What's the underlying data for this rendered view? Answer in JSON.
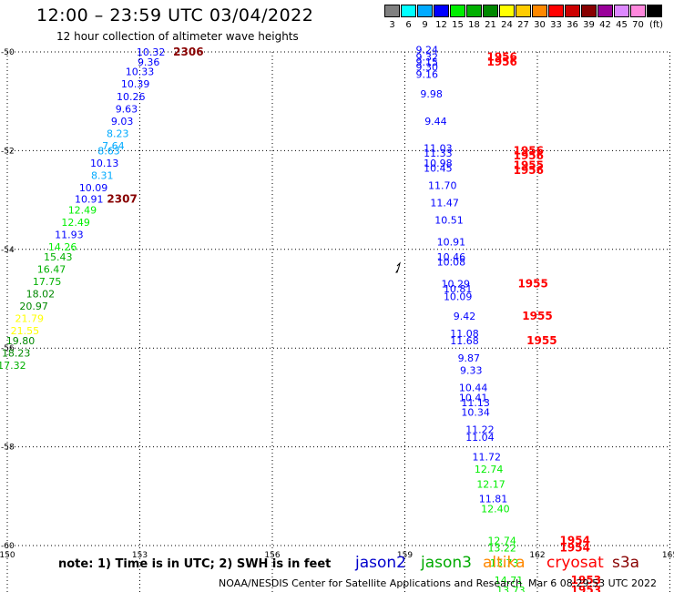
{
  "header": {
    "title": "12:00 – 23:59 UTC 03/04/2022",
    "subtitle": "12 hour collection of altimeter wave heights"
  },
  "scale": {
    "colors": [
      "#808080",
      "#00ffff",
      "#00aaff",
      "#0000ff",
      "#00ee00",
      "#00b000",
      "#008800",
      "#ffff00",
      "#ffcc00",
      "#ff8800",
      "#ff0000",
      "#cc0000",
      "#880000",
      "#990099",
      "#dd88ff",
      "#ff88dd",
      "#000000"
    ],
    "labels": [
      "3",
      "6",
      "9",
      "12",
      "15",
      "18",
      "21",
      "24",
      "27",
      "30",
      "33",
      "36",
      "39",
      "42",
      "45",
      "70",
      "(ft)"
    ]
  },
  "axes": {
    "x_ticks": [
      "150",
      "153",
      "156",
      "159",
      "162",
      "165"
    ],
    "y_ticks": [
      "-50",
      "-52",
      "-54",
      "-56",
      "-58",
      "-60"
    ]
  },
  "tracks": [
    {
      "points": [
        {
          "v": "10.32",
          "lon": 153.25,
          "lat": -50.0
        },
        {
          "v": "9.36",
          "lon": 153.2,
          "lat": -50.2
        },
        {
          "v": "10.33",
          "lon": 153.0,
          "lat": -50.4
        },
        {
          "v": "10.39",
          "lon": 152.9,
          "lat": -50.65
        },
        {
          "v": "10.26",
          "lon": 152.8,
          "lat": -50.9
        },
        {
          "v": "9.63",
          "lon": 152.7,
          "lat": -51.15
        },
        {
          "v": "9.03",
          "lon": 152.6,
          "lat": -51.4
        },
        {
          "v": "8.23",
          "lon": 152.5,
          "lat": -51.65
        },
        {
          "v": "7.64",
          "lon": 152.4,
          "lat": -51.9
        },
        {
          "v": "8.63",
          "lon": 152.3,
          "lat": -52.0
        },
        {
          "v": "10.13",
          "lon": 152.2,
          "lat": -52.25
        },
        {
          "v": "8.31",
          "lon": 152.15,
          "lat": -52.5
        },
        {
          "v": "10.09",
          "lon": 151.95,
          "lat": -52.75
        },
        {
          "v": "10.91",
          "lon": 151.85,
          "lat": -52.98
        },
        {
          "v": "12.49",
          "lon": 151.7,
          "lat": -53.2
        },
        {
          "v": "12.49",
          "lon": 151.55,
          "lat": -53.45
        },
        {
          "v": "11.93",
          "lon": 151.4,
          "lat": -53.7
        },
        {
          "v": "14.26",
          "lon": 151.25,
          "lat": -53.95
        },
        {
          "v": "15.43",
          "lon": 151.15,
          "lat": -54.15
        },
        {
          "v": "16.47",
          "lon": 151.0,
          "lat": -54.4
        },
        {
          "v": "17.75",
          "lon": 150.9,
          "lat": -54.65
        },
        {
          "v": "18.02",
          "lon": 150.75,
          "lat": -54.9
        },
        {
          "v": "20.97",
          "lon": 150.6,
          "lat": -55.15
        },
        {
          "v": "21.79",
          "lon": 150.5,
          "lat": -55.4
        },
        {
          "v": "21.55",
          "lon": 150.4,
          "lat": -55.65
        },
        {
          "v": "19.80",
          "lon": 150.3,
          "lat": -55.85
        },
        {
          "v": "18.23",
          "lon": 150.2,
          "lat": -56.1
        },
        {
          "v": "17.32",
          "lon": 150.1,
          "lat": -56.35
        }
      ]
    },
    {
      "points": [
        {
          "v": "9.24",
          "lon": 159.5,
          "lat": -49.95
        },
        {
          "v": "9.32",
          "lon": 159.5,
          "lat": -50.1
        },
        {
          "v": "9.15",
          "lon": 159.5,
          "lat": -50.2
        },
        {
          "v": "9.30",
          "lon": 159.5,
          "lat": -50.3
        },
        {
          "v": "9.16",
          "lon": 159.5,
          "lat": -50.45
        },
        {
          "v": "9.98",
          "lon": 159.6,
          "lat": -50.85
        },
        {
          "v": "9.44",
          "lon": 159.7,
          "lat": -51.4
        },
        {
          "v": "11.03",
          "lon": 159.75,
          "lat": -51.95
        },
        {
          "v": "11.33",
          "lon": 159.75,
          "lat": -52.05
        },
        {
          "v": "10.98",
          "lon": 159.75,
          "lat": -52.25
        },
        {
          "v": "10.45",
          "lon": 159.75,
          "lat": -52.35
        },
        {
          "v": "11.70",
          "lon": 159.85,
          "lat": -52.7
        },
        {
          "v": "11.47",
          "lon": 159.9,
          "lat": -53.05
        },
        {
          "v": "10.51",
          "lon": 160.0,
          "lat": -53.4
        },
        {
          "v": "10.91",
          "lon": 160.05,
          "lat": -53.85
        },
        {
          "v": "10.46",
          "lon": 160.05,
          "lat": -54.15
        },
        {
          "v": "10.08",
          "lon": 160.05,
          "lat": -54.25
        },
        {
          "v": "10.29",
          "lon": 160.15,
          "lat": -54.7
        },
        {
          "v": "10.81",
          "lon": 160.2,
          "lat": -54.8
        },
        {
          "v": "10.09",
          "lon": 160.2,
          "lat": -54.95
        },
        {
          "v": "9.42",
          "lon": 160.35,
          "lat": -55.35
        },
        {
          "v": "11.08",
          "lon": 160.35,
          "lat": -55.7
        },
        {
          "v": "11.68",
          "lon": 160.35,
          "lat": -55.85
        },
        {
          "v": "9.87",
          "lon": 160.45,
          "lat": -56.2
        },
        {
          "v": "9.33",
          "lon": 160.5,
          "lat": -56.45
        },
        {
          "v": "10.44",
          "lon": 160.55,
          "lat": -56.8
        },
        {
          "v": "10.41",
          "lon": 160.55,
          "lat": -57.0
        },
        {
          "v": "11.13",
          "lon": 160.6,
          "lat": -57.1
        },
        {
          "v": "10.34",
          "lon": 160.6,
          "lat": -57.3
        },
        {
          "v": "11.22",
          "lon": 160.7,
          "lat": -57.65
        },
        {
          "v": "11.04",
          "lon": 160.7,
          "lat": -57.8
        },
        {
          "v": "11.72",
          "lon": 160.85,
          "lat": -58.2
        },
        {
          "v": "12.74",
          "lon": 160.9,
          "lat": -58.45
        },
        {
          "v": "12.17",
          "lon": 160.95,
          "lat": -58.75
        },
        {
          "v": "11.81",
          "lon": 161.0,
          "lat": -59.05
        },
        {
          "v": "12.40",
          "lon": 161.05,
          "lat": -59.25
        },
        {
          "v": "12.74",
          "lon": 161.2,
          "lat": -59.9
        },
        {
          "v": "13.22",
          "lon": 161.2,
          "lat": -60.05
        },
        {
          "v": "13.73",
          "lon": 161.25,
          "lat": -60.35
        },
        {
          "v": "14.71",
          "lon": 161.35,
          "lat": -60.7
        },
        {
          "v": "13.73",
          "lon": 161.4,
          "lat": -60.9
        }
      ]
    }
  ],
  "times": [
    {
      "t": "2306",
      "lon": 154.1,
      "lat": -50.0,
      "color": "#880000"
    },
    {
      "t": "2307",
      "lon": 152.6,
      "lat": -52.98,
      "color": "#880000"
    },
    {
      "t": "1956",
      "lon": 161.2,
      "lat": -50.1,
      "color": "#ff0000"
    },
    {
      "t": "1956",
      "lon": 161.2,
      "lat": -50.2,
      "color": "#ff0000"
    },
    {
      "t": "1956",
      "lon": 161.8,
      "lat": -52.0,
      "color": "#ff0000"
    },
    {
      "t": "1956",
      "lon": 161.8,
      "lat": -52.1,
      "color": "#ff0000"
    },
    {
      "t": "1955",
      "lon": 161.8,
      "lat": -52.3,
      "color": "#ff0000"
    },
    {
      "t": "1956",
      "lon": 161.8,
      "lat": -52.4,
      "color": "#ff0000"
    },
    {
      "t": "1955",
      "lon": 161.9,
      "lat": -54.7,
      "color": "#ff0000"
    },
    {
      "t": "1955",
      "lon": 162.0,
      "lat": -55.35,
      "color": "#ff0000"
    },
    {
      "t": "1955",
      "lon": 162.1,
      "lat": -55.85,
      "color": "#ff0000"
    },
    {
      "t": "1954",
      "lon": 162.85,
      "lat": -59.9,
      "color": "#ff0000"
    },
    {
      "t": "1954",
      "lon": 162.85,
      "lat": -60.05,
      "color": "#ff0000"
    },
    {
      "t": "1953",
      "lon": 163.1,
      "lat": -60.7,
      "color": "#ff0000"
    },
    {
      "t": "1953",
      "lon": 163.1,
      "lat": -60.9,
      "color": "#ff0000"
    }
  ],
  "footer": {
    "note": "note:  1) Time is in UTC;  2) SWH is in feet",
    "satellites": [
      {
        "name": "jason2",
        "color": "#0000cc"
      },
      {
        "name": "jason3",
        "color": "#00aa00"
      },
      {
        "name": "altika",
        "color": "#ff8800"
      },
      {
        "name": "cryosat",
        "color": "#ff0000"
      },
      {
        "name": "s3a",
        "color": "#880000"
      }
    ],
    "credit": "NOAA/NESDIS Center for Satellite Applications and Research",
    "timestamp": "Mar  6 08:29:53 UTC 2022"
  }
}
